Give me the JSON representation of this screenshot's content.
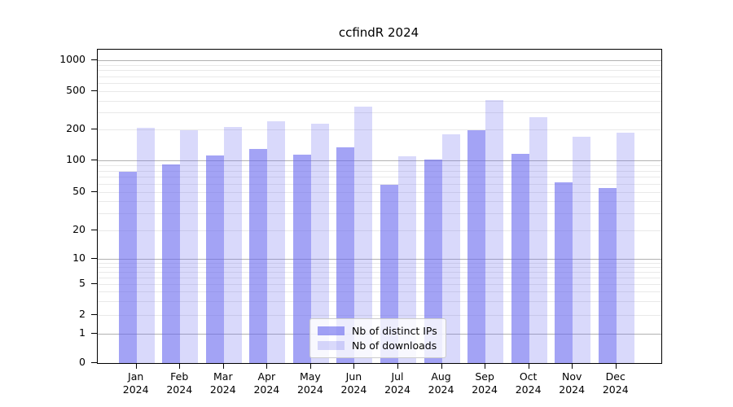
{
  "chart_data": {
    "type": "bar",
    "title": "ccfindR 2024",
    "categories": [
      "Jan 2024",
      "Feb 2024",
      "Mar 2024",
      "Apr 2024",
      "May 2024",
      "Jun 2024",
      "Jul 2024",
      "Aug 2024",
      "Sep 2024",
      "Oct 2024",
      "Nov 2024",
      "Dec 2024"
    ],
    "series": [
      {
        "name": "Nb of distinct IPs",
        "color": "#6666ee",
        "alpha": 0.6,
        "values": [
          78,
          93,
          112,
          130,
          114,
          134,
          59,
          102,
          198,
          116,
          62,
          55
        ]
      },
      {
        "name": "Nb of downloads",
        "color": "#6666ee",
        "alpha": 0.25,
        "values": [
          208,
          197,
          212,
          245,
          230,
          345,
          110,
          180,
          405,
          270,
          172,
          188
        ]
      }
    ],
    "xlabel": "",
    "ylabel": "",
    "yticks": [
      0,
      1,
      2,
      5,
      10,
      20,
      50,
      100,
      200,
      500,
      1000
    ],
    "yscale": "log-like with 0 baseline",
    "ylim": [
      0,
      1100
    ],
    "grid": true,
    "legend_position": "lower center",
    "grid_major_color": "#b2b2b2",
    "grid_minor_color": "#e9e9e9"
  }
}
